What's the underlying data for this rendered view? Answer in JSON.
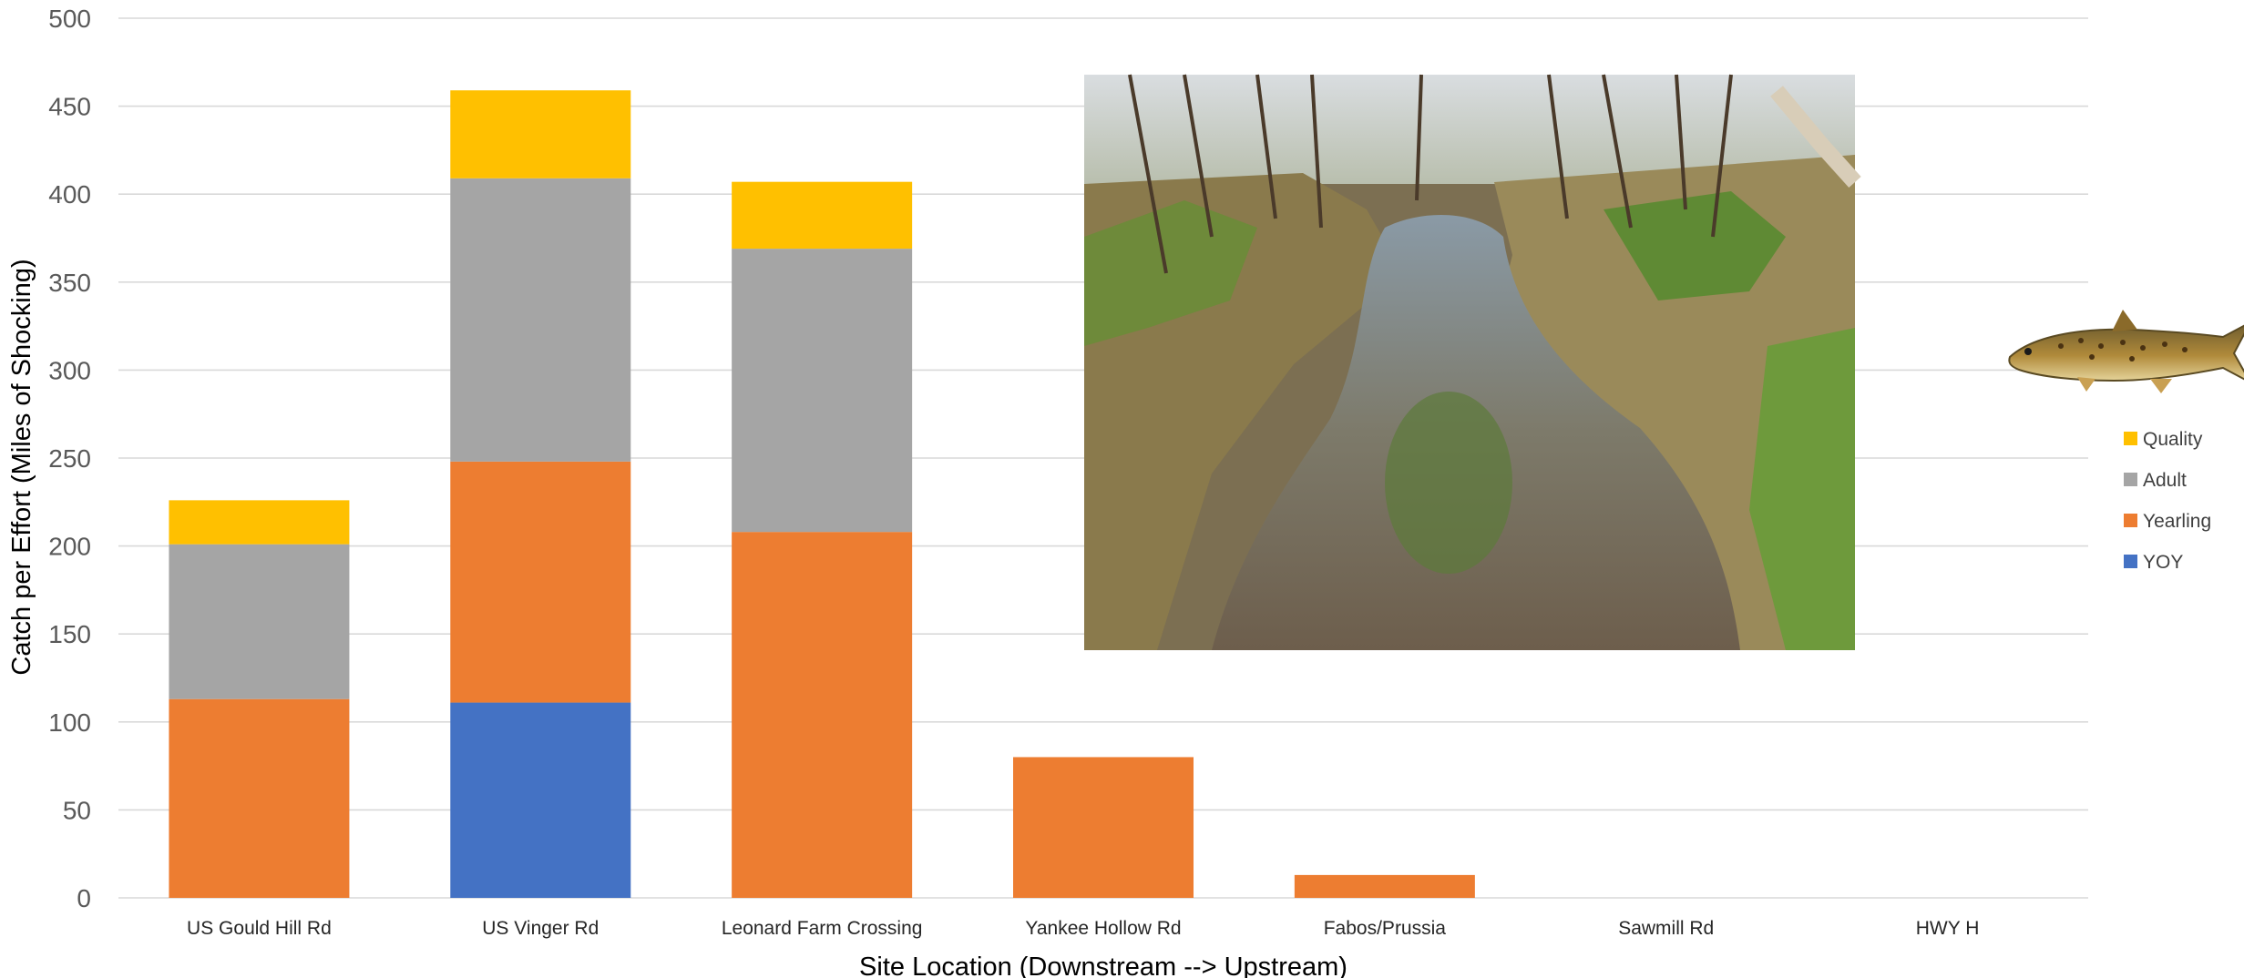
{
  "chart_data": {
    "type": "bar",
    "stacked": true,
    "categories": [
      "US Gould Hill Rd",
      "US Vinger Rd",
      "Leonard Farm Crossing",
      "Yankee Hollow Rd",
      "Fabos/Prussia",
      "Sawmill Rd",
      "HWY H"
    ],
    "series": [
      {
        "name": "YOY",
        "color": "#4472C4",
        "values": [
          0,
          111,
          0,
          0,
          0,
          0,
          0
        ]
      },
      {
        "name": "Yearling",
        "color": "#ED7D31",
        "values": [
          113,
          137,
          208,
          80,
          13,
          0,
          0
        ]
      },
      {
        "name": "Adult",
        "color": "#A5A5A5",
        "values": [
          88,
          161,
          161,
          0,
          0,
          0,
          0
        ]
      },
      {
        "name": "Quality",
        "color": "#FFC000",
        "values": [
          25,
          50,
          38,
          0,
          0,
          0,
          0
        ]
      }
    ],
    "xlabel": "Site Location (Downstream --> Upstream)",
    "ylabel": "Catch per Effort (Miles of Shocking)",
    "ylim": [
      0,
      500
    ],
    "yticks": [
      0,
      50,
      100,
      150,
      200,
      250,
      300,
      350,
      400,
      450,
      500
    ],
    "grid": true,
    "legend_position": "right",
    "legend_order": [
      "Quality",
      "Adult",
      "Yearling",
      "YOY"
    ]
  },
  "images": {
    "stream_photo": "stream-photo",
    "fish_icon": "brown-trout-icon"
  }
}
